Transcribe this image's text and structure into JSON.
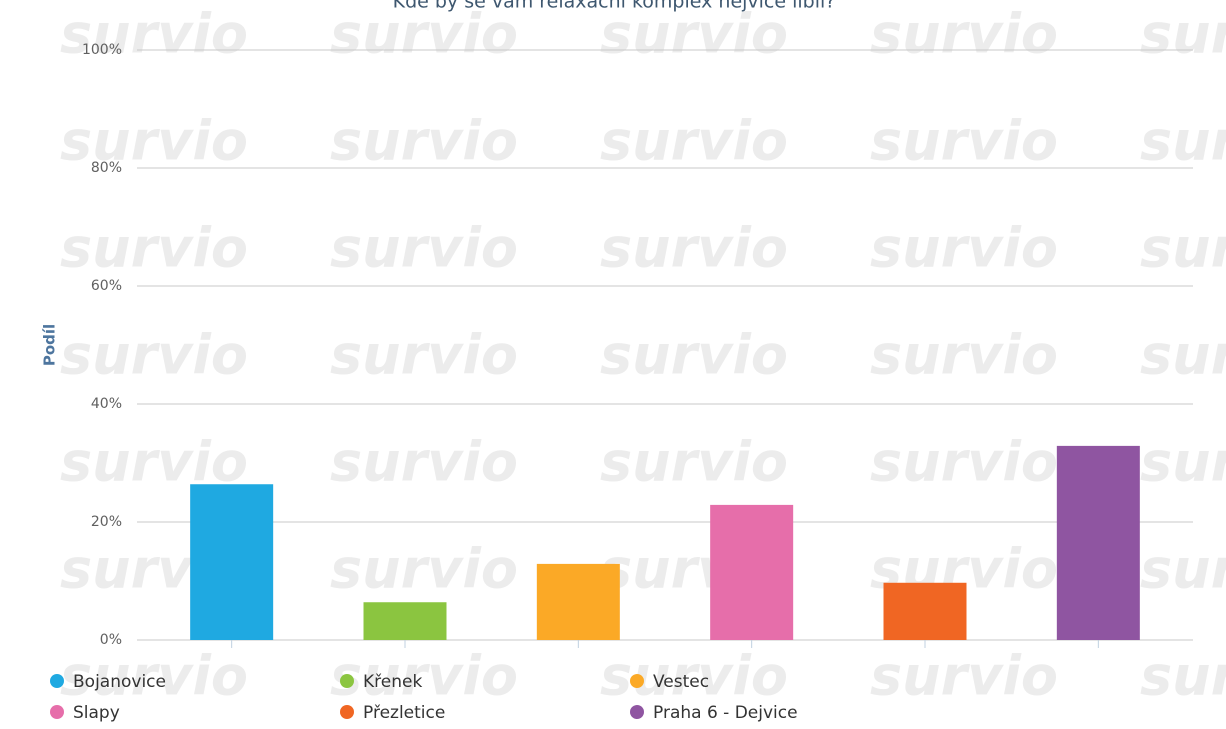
{
  "chart_data": {
    "type": "bar",
    "title": "Kde by se vám relaxační komplex nejvíce líbil?",
    "y_label": "Podíl",
    "watermark": "survio",
    "categories": [
      "Bojanovice",
      "Křenek",
      "Vestec",
      "Slapy",
      "Přezletice",
      "Praha 6 - Dejvice"
    ],
    "values": [
      26.4,
      6.4,
      12.9,
      22.9,
      9.7,
      32.9
    ],
    "colors": [
      "#1fa9e1",
      "#8bc540",
      "#fba926",
      "#e66eaa",
      "#f06623",
      "#8f55a1"
    ],
    "ylim": [
      0,
      100
    ],
    "yticks": [
      {
        "value": 0,
        "label": "0%"
      },
      {
        "value": 20,
        "label": "20%"
      },
      {
        "value": 40,
        "label": "40%"
      },
      {
        "value": 60,
        "label": "60%"
      },
      {
        "value": 80,
        "label": "80%"
      },
      {
        "value": 100,
        "label": "100%"
      }
    ],
    "grid": true
  }
}
